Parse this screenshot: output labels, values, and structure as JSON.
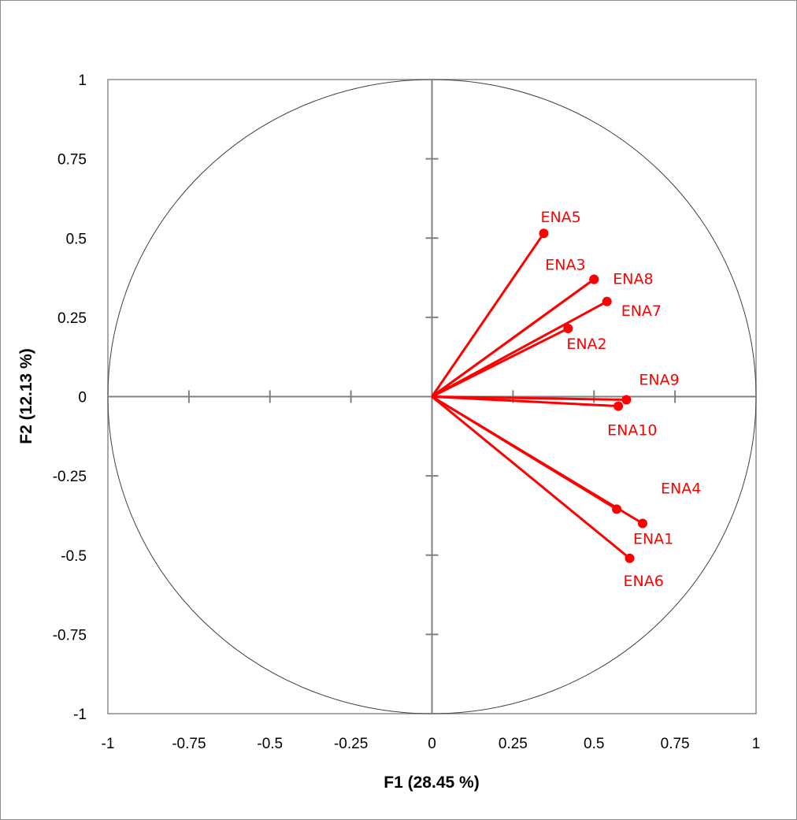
{
  "chart_data": {
    "type": "scatter",
    "title": "",
    "xlabel": "F1 (28.45 %)",
    "ylabel": "F2 (12.13 %)",
    "xlim": [
      -1,
      1
    ],
    "ylim": [
      -1,
      1
    ],
    "x_ticks": [
      "-1",
      "-0.75",
      "-0.5",
      "-0.25",
      "0",
      "0.25",
      "0.5",
      "0.75",
      "1"
    ],
    "y_ticks": [
      "1",
      "0.75",
      "0.5",
      "0.25",
      "0",
      "-0.25",
      "-0.5",
      "-0.75",
      "-1"
    ],
    "x_tick_values": [
      -1,
      -0.75,
      -0.5,
      -0.25,
      0,
      0.25,
      0.5,
      0.75,
      1
    ],
    "y_tick_values": [
      1,
      0.75,
      0.5,
      0.25,
      0,
      -0.25,
      -0.5,
      -0.75,
      -1
    ],
    "grid": false,
    "unit_circle": true,
    "vectors_from_origin": true,
    "color": "#ff0000",
    "points": [
      {
        "label": "ENA5",
        "x": 0.345,
        "y": 0.515
      },
      {
        "label": "ENA3",
        "x": 0.5,
        "y": 0.37
      },
      {
        "label": "ENA8",
        "x": 0.5,
        "y": 0.37
      },
      {
        "label": "ENA7",
        "x": 0.54,
        "y": 0.3
      },
      {
        "label": "ENA2",
        "x": 0.42,
        "y": 0.215
      },
      {
        "label": "ENA9",
        "x": 0.6,
        "y": -0.01
      },
      {
        "label": "ENA10",
        "x": 0.575,
        "y": -0.03
      },
      {
        "label": "ENA4",
        "x": 0.57,
        "y": -0.355
      },
      {
        "label": "ENA1",
        "x": 0.65,
        "y": -0.4
      },
      {
        "label": "ENA6",
        "x": 0.61,
        "y": -0.51
      }
    ]
  }
}
